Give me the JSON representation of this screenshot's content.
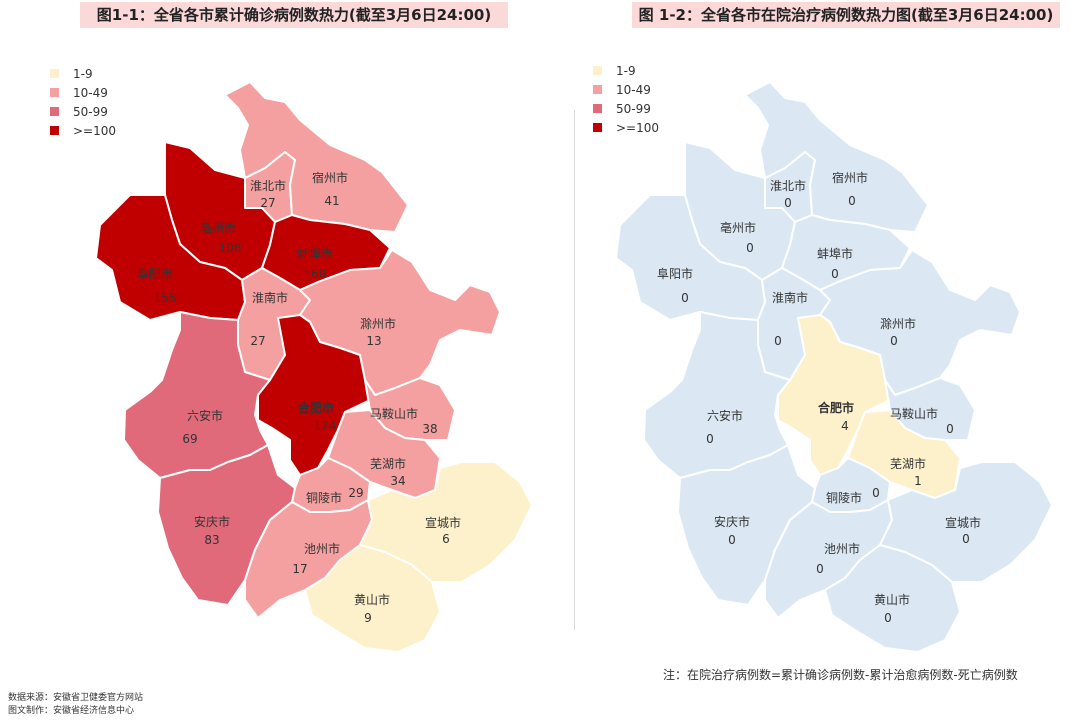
{
  "titles": {
    "left": "图1-1：全省各市累计确诊病例数热力(截至3月6日24:00)",
    "right": "图 1-2：全省各市在院治疗病例数热力图(截至3月6日24:00)"
  },
  "legend": [
    {
      "label": "1-9",
      "color": "#fdf1cc"
    },
    {
      "label": "10-49",
      "color": "#f5a0a0"
    },
    {
      "label": "50-99",
      "color": "#e06a7a"
    },
    {
      "label": ">=100",
      "color": "#c00000"
    }
  ],
  "colors": {
    "zero": "#dbe8f4",
    "border": "#ffffff"
  },
  "left_map": [
    {
      "city": "淮北市",
      "value": "27",
      "color": "#f5a0a0"
    },
    {
      "city": "宿州市",
      "value": "41",
      "color": "#f5a0a0"
    },
    {
      "city": "亳州市",
      "value": "108",
      "color": "#c00000"
    },
    {
      "city": "蚌埠市",
      "value": "160",
      "color": "#c00000"
    },
    {
      "city": "阜阳市",
      "value": "155",
      "color": "#c00000"
    },
    {
      "city": "淮南市",
      "value": "27",
      "color": "#f5a0a0"
    },
    {
      "city": "滁州市",
      "value": "13",
      "color": "#f5a0a0"
    },
    {
      "city": "六安市",
      "value": "69",
      "color": "#e06a7a"
    },
    {
      "city": "合肥市",
      "value": "174",
      "color": "#c00000"
    },
    {
      "city": "马鞍山市",
      "value": "38",
      "color": "#f5a0a0"
    },
    {
      "city": "芜湖市",
      "value": "34",
      "color": "#f5a0a0"
    },
    {
      "city": "铜陵市",
      "value": "29",
      "color": "#f5a0a0"
    },
    {
      "city": "安庆市",
      "value": "83",
      "color": "#e06a7a"
    },
    {
      "city": "池州市",
      "value": "17",
      "color": "#f5a0a0"
    },
    {
      "city": "宣城市",
      "value": "6",
      "color": "#fdf1cc"
    },
    {
      "city": "黄山市",
      "value": "9",
      "color": "#fdf1cc"
    }
  ],
  "right_map": [
    {
      "city": "淮北市",
      "value": "0",
      "color": "#dbe8f4"
    },
    {
      "city": "宿州市",
      "value": "0",
      "color": "#dbe8f4"
    },
    {
      "city": "亳州市",
      "value": "0",
      "color": "#dbe8f4"
    },
    {
      "city": "蚌埠市",
      "value": "0",
      "color": "#dbe8f4"
    },
    {
      "city": "阜阳市",
      "value": "0",
      "color": "#dbe8f4"
    },
    {
      "city": "淮南市",
      "value": "0",
      "color": "#dbe8f4"
    },
    {
      "city": "滁州市",
      "value": "0",
      "color": "#dbe8f4"
    },
    {
      "city": "六安市",
      "value": "0",
      "color": "#dbe8f4"
    },
    {
      "city": "合肥市",
      "value": "4",
      "color": "#fdf1cc"
    },
    {
      "city": "马鞍山市",
      "value": "0",
      "color": "#dbe8f4"
    },
    {
      "city": "芜湖市",
      "value": "1",
      "color": "#fdf1cc"
    },
    {
      "city": "铜陵市",
      "value": "0",
      "color": "#dbe8f4"
    },
    {
      "city": "安庆市",
      "value": "0",
      "color": "#dbe8f4"
    },
    {
      "city": "池州市",
      "value": "0",
      "color": "#dbe8f4"
    },
    {
      "city": "宣城市",
      "value": "0",
      "color": "#dbe8f4"
    },
    {
      "city": "黄山市",
      "value": "0",
      "color": "#dbe8f4"
    }
  ],
  "note": "注：在院治疗病例数=累计确诊病例数-累计治愈病例数-死亡病例数",
  "source": "数据来源：安徽省卫健委官方网站",
  "producer": "图文制作：安徽省经济信息中心"
}
